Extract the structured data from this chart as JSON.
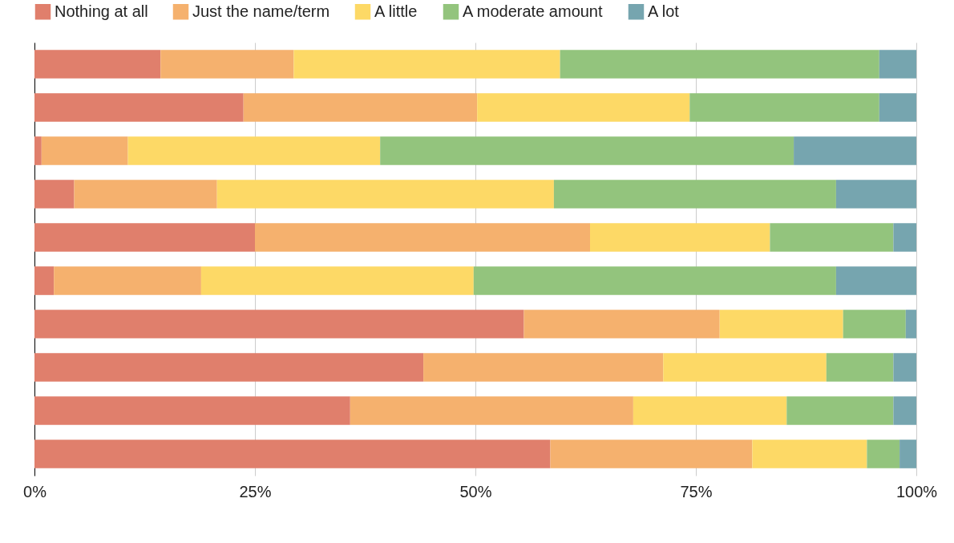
{
  "chart_data": {
    "type": "bar",
    "orientation": "horizontal",
    "stacked": true,
    "categories": [
      null,
      null,
      null,
      null,
      null,
      null,
      null,
      null,
      null,
      null
    ],
    "series": [
      {
        "name": "Nothing at all",
        "color": "#e07f6c",
        "values": [
          14.3,
          23.7,
          0.8,
          4.5,
          25.0,
          2.2,
          55.5,
          44.1,
          35.8,
          58.5
        ]
      },
      {
        "name": "Just the name/term",
        "color": "#f5b16e",
        "values": [
          15.1,
          26.5,
          9.8,
          16.2,
          38.0,
          16.7,
          22.2,
          27.2,
          32.1,
          22.9
        ]
      },
      {
        "name": "A little",
        "color": "#fdd966",
        "values": [
          30.2,
          24.1,
          28.6,
          38.2,
          20.4,
          30.9,
          14.0,
          18.5,
          17.4,
          13.0
        ]
      },
      {
        "name": "A moderate amount",
        "color": "#93c47d",
        "values": [
          36.2,
          21.5,
          46.9,
          32.0,
          14.0,
          41.1,
          7.1,
          7.6,
          12.1,
          3.7
        ]
      },
      {
        "name": "A lot",
        "color": "#76a5af",
        "values": [
          4.2,
          4.2,
          13.9,
          9.1,
          2.6,
          9.1,
          1.2,
          2.6,
          2.6,
          1.9
        ]
      }
    ],
    "xlim": [
      0,
      100
    ],
    "xticks": [
      {
        "value": 0,
        "label": "0%"
      },
      {
        "value": 25,
        "label": "25%"
      },
      {
        "value": 50,
        "label": "50%"
      },
      {
        "value": 75,
        "label": "75%"
      },
      {
        "value": 100,
        "label": "100%"
      }
    ],
    "grid": "x",
    "legend": "top",
    "tick_labels": "x"
  }
}
